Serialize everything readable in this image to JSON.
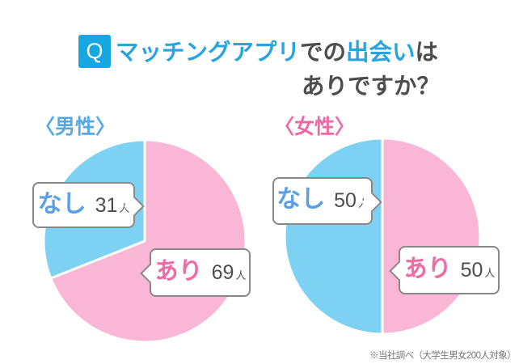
{
  "title": {
    "q_label": "Q",
    "q_bg": "#17a6e4",
    "line1_parts": [
      {
        "text": "マッチングアプリ",
        "color": "#29a4dd"
      },
      {
        "text": "での",
        "color": "#4d4d4d"
      },
      {
        "text": "出会い",
        "color": "#29a4dd"
      },
      {
        "text": "は",
        "color": "#4d4d4d"
      }
    ],
    "line2": "ありですか？"
  },
  "chart_data": [
    {
      "type": "pie",
      "title": "〈男性〉",
      "title_color": "#54a8e8",
      "labels": [
        "あり",
        "なし"
      ],
      "values": [
        69,
        31
      ],
      "unit": "人",
      "colors": [
        "#f9b6d5",
        "#7dd1f2"
      ],
      "label_colors": [
        "#ee6ba3",
        "#5b9fe8"
      ],
      "start_angle": 0,
      "direction": "clockwise"
    },
    {
      "type": "pie",
      "title": "〈女性〉",
      "title_color": "#f067a5",
      "labels": [
        "あり",
        "なし"
      ],
      "values": [
        50,
        50
      ],
      "unit": "人",
      "colors": [
        "#f9b6d5",
        "#7dd1f2"
      ],
      "label_colors": [
        "#ee6ba3",
        "#5b9fe8"
      ],
      "start_angle": 0,
      "direction": "clockwise"
    }
  ],
  "footnote": "※当社調べ（大学生男女200人対象）"
}
